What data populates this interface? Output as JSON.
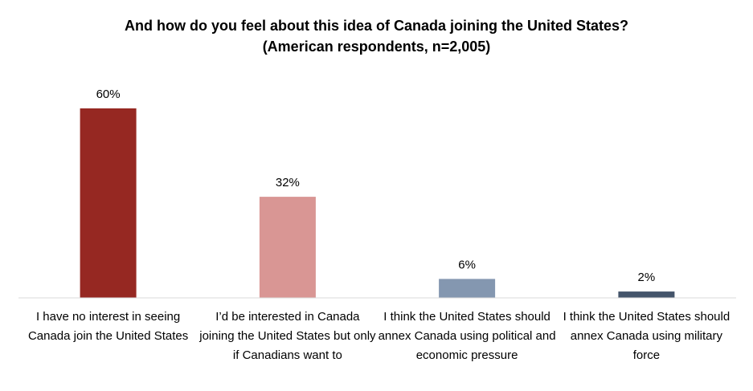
{
  "chart_data": {
    "type": "bar",
    "title": "And how do you feel about this idea of Canada joining the United States?",
    "subtitle": "(American respondents, n=2,005)",
    "categories": [
      "I have no interest in seeing Canada join the United States",
      "I’d be interested in Canada joining the United States but only if Canadians want to",
      "I think the United States should annex Canada using political and economic pressure",
      "I think the United States should annex Canada using military force"
    ],
    "values": [
      60,
      32,
      6,
      2
    ],
    "value_labels": [
      "60%",
      "32%",
      "6%",
      "2%"
    ],
    "colors": [
      "#962822",
      "#D99694",
      "#8497B0",
      "#44546A"
    ],
    "ylim": [
      0,
      60
    ],
    "xlabel": "",
    "ylabel": "",
    "grid": false,
    "legend": "none"
  }
}
